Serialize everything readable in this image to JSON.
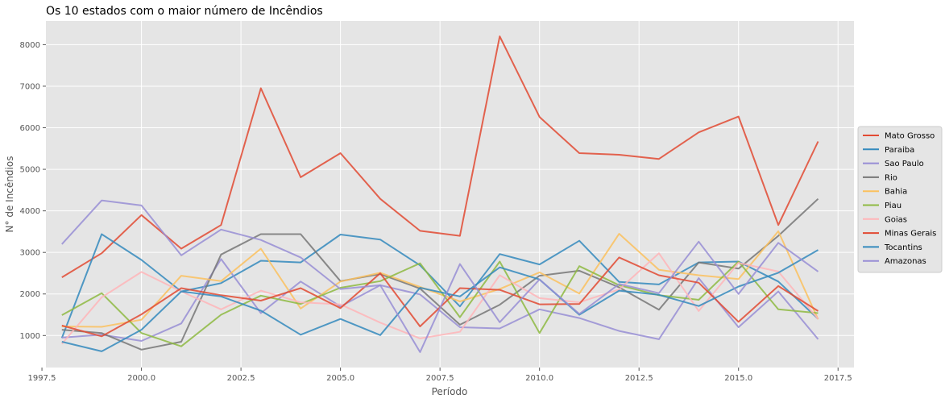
{
  "chart_data": {
    "type": "line",
    "title": "Os 10 estados com o maior número de Incêndios",
    "xlabel": "Período",
    "ylabel": "N° de Incêndios",
    "xlim": [
      1997.6,
      2017.9
    ],
    "ylim": [
      230,
      8570
    ],
    "xticks": [
      1997.5,
      2000.0,
      2002.5,
      2005.0,
      2007.5,
      2010.0,
      2012.5,
      2015.0,
      2017.5
    ],
    "xtick_labels": [
      "1997.5",
      "2000.0",
      "2002.5",
      "2005.0",
      "2007.5",
      "2010.0",
      "2012.5",
      "2015.0",
      "2017.5"
    ],
    "yticks": [
      1000,
      2000,
      3000,
      4000,
      5000,
      6000,
      7000,
      8000
    ],
    "ytick_labels": [
      "1000",
      "2000",
      "3000",
      "4000",
      "5000",
      "6000",
      "7000",
      "8000"
    ],
    "grid": true,
    "legend_position": "right",
    "x": [
      1998,
      1999,
      2000,
      2001,
      2002,
      2003,
      2004,
      2005,
      2006,
      2007,
      2008,
      2009,
      2010,
      2011,
      2012,
      2013,
      2014,
      2015,
      2016,
      2017
    ],
    "series": [
      {
        "name": "Mato Grosso",
        "color": "#e24a33",
        "values": [
          2400,
          2980,
          3900,
          3090,
          3660,
          6950,
          4810,
          5390,
          4290,
          3520,
          3400,
          8200,
          6260,
          5390,
          5350,
          5250,
          5890,
          6270,
          3660,
          5670
        ]
      },
      {
        "name": "Paraiba",
        "color": "#348abd",
        "values": [
          940,
          3440,
          2820,
          2060,
          2260,
          2800,
          2760,
          3430,
          3310,
          2690,
          1700,
          2960,
          2710,
          3280,
          2290,
          2230,
          2760,
          2780,
          2300,
          1400
        ]
      },
      {
        "name": "Sao Paulo",
        "color": "#988ed5",
        "values": [
          950,
          1020,
          870,
          1290,
          2840,
          1540,
          2300,
          1700,
          2210,
          1990,
          1200,
          1170,
          1630,
          1420,
          1110,
          910,
          2380,
          1200,
          2060,
          910
        ]
      },
      {
        "name": "Rio",
        "color": "#777777",
        "values": [
          1140,
          1060,
          660,
          850,
          2950,
          3440,
          3440,
          2310,
          2480,
          2130,
          1260,
          1740,
          2440,
          2560,
          2160,
          1620,
          2760,
          2610,
          3400,
          4290
        ]
      },
      {
        "name": "Bahia",
        "color": "#fbc15e",
        "values": [
          1220,
          1210,
          1380,
          2440,
          2310,
          3090,
          1650,
          2300,
          2510,
          2170,
          1820,
          2120,
          2520,
          2010,
          3450,
          2580,
          2450,
          2360,
          3510,
          1390
        ]
      },
      {
        "name": "Piau",
        "color": "#8eba42",
        "values": [
          1490,
          2020,
          1060,
          740,
          1500,
          1960,
          1760,
          2150,
          2310,
          2740,
          1440,
          2780,
          1060,
          2670,
          2210,
          1970,
          1860,
          2780,
          1630,
          1540
        ]
      },
      {
        "name": "Goias",
        "color": "#ffb5b8",
        "values": [
          800,
          1920,
          2530,
          2060,
          1630,
          2080,
          1800,
          1750,
          1310,
          930,
          1090,
          2450,
          1900,
          1800,
          2110,
          2980,
          1590,
          2750,
          2540,
          1400
        ]
      },
      {
        "name": "Minas Gerais",
        "color": "#e24a33",
        "values": [
          1240,
          980,
          1510,
          2140,
          1970,
          1840,
          2140,
          1660,
          2500,
          1220,
          2140,
          2100,
          1750,
          1760,
          2880,
          2450,
          2270,
          1330,
          2190,
          1590
        ]
      },
      {
        "name": "Tocantins",
        "color": "#348abd",
        "values": [
          850,
          620,
          1140,
          2060,
          1940,
          1600,
          1020,
          1400,
          1010,
          2150,
          1940,
          2640,
          2350,
          1500,
          2080,
          1980,
          1710,
          2180,
          2510,
          3060
        ]
      },
      {
        "name": "Amazonas",
        "color": "#988ed5",
        "values": [
          3200,
          4250,
          4130,
          2930,
          3550,
          3300,
          2880,
          2120,
          2210,
          600,
          2720,
          1320,
          2350,
          1520,
          2240,
          2020,
          3260,
          2000,
          3230,
          2540
        ]
      }
    ]
  }
}
